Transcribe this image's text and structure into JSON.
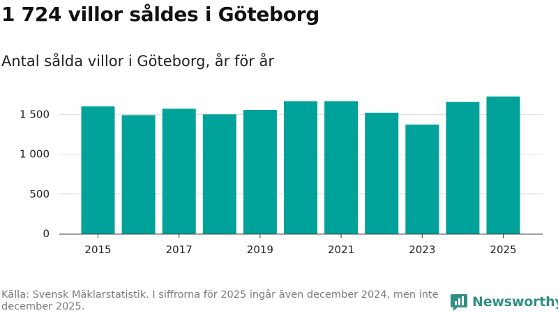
{
  "header": {
    "title": "1 724 villor såldes i Göteborg",
    "subtitle": "Antal sålda villor i Göteborg, år för år"
  },
  "footer": {
    "source": "Källa: Svensk Mäklarstatistik. I siffrorna för 2025 ingår även december 2024, men inte december 2025.",
    "brand": "Newsworthy"
  },
  "colors": {
    "bar": "#00a29a",
    "grid": "#dddddd",
    "axis": "#333333",
    "brand": "#2f8f83"
  },
  "chart_data": {
    "type": "bar",
    "title": "Antal sålda villor i Göteborg, år för år",
    "xlabel": "",
    "ylabel": "",
    "categories": [
      "2015",
      "2016",
      "2017",
      "2018",
      "2019",
      "2020",
      "2021",
      "2022",
      "2023",
      "2024",
      "2025"
    ],
    "values": [
      1600,
      1490,
      1570,
      1500,
      1555,
      1665,
      1665,
      1520,
      1370,
      1655,
      1724
    ],
    "ylim": [
      0,
      1800
    ],
    "yticks": [
      0,
      500,
      1000,
      1500
    ],
    "ytick_labels": [
      "0",
      "500",
      "1 000",
      "1 500"
    ],
    "xtick_labels": [
      "2015",
      "",
      "2017",
      "",
      "2019",
      "",
      "2021",
      "",
      "2023",
      "",
      "2025"
    ],
    "grid": true
  }
}
